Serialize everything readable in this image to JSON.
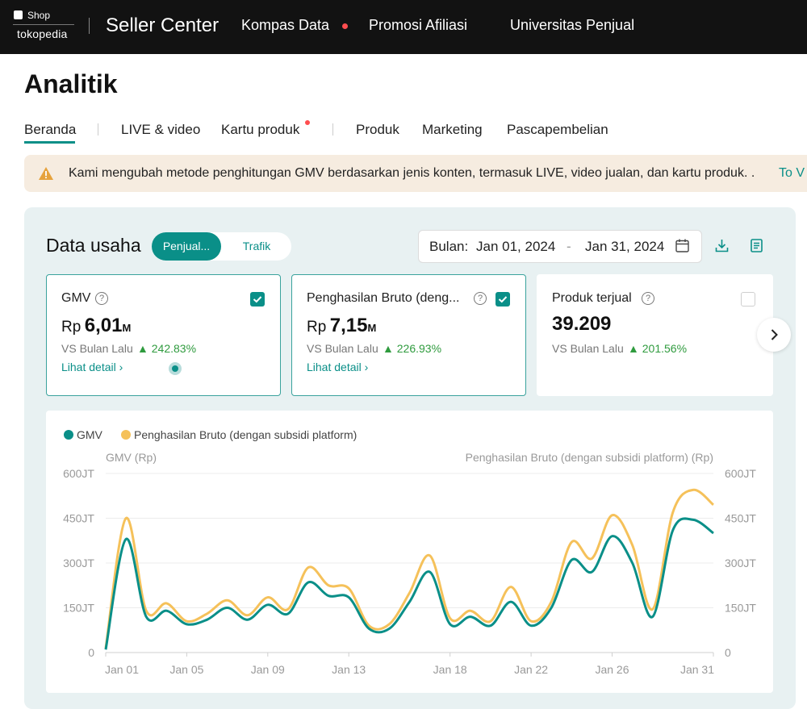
{
  "topbar": {
    "logo_shop": "Shop",
    "logo_brand": "tokopedia",
    "title": "Seller Center",
    "nav": [
      "Kompas Data",
      "Promosi Afiliasi",
      "Universitas Penjual"
    ]
  },
  "page": {
    "title": "Analitik",
    "tabs": [
      "Beranda",
      "LIVE & video",
      "Kartu produk",
      "Produk",
      "Marketing",
      "Pascapembelian"
    ],
    "active_tab": "Beranda"
  },
  "banner": {
    "text": "Kami mengubah metode penghitungan GMV berdasarkan jenis konten, termasuk LIVE, video jualan, dan kartu produk. .",
    "link": "To V"
  },
  "data_usaha": {
    "title": "Data usaha",
    "toggle_active": "Penjual...",
    "toggle_inactive": "Trafik",
    "date_label": "Bulan:",
    "date_from": "Jan 01, 2024",
    "date_sep": "-",
    "date_to": "Jan 31, 2024"
  },
  "metrics": [
    {
      "title": "GMV",
      "currency": "Rp",
      "value": "6,01",
      "unit": "M",
      "vs": "VS Bulan Lalu",
      "growth": "242.83%",
      "detail": "Lihat detail",
      "checked": true
    },
    {
      "title": "Penghasilan Bruto (deng...",
      "currency": "Rp",
      "value": "7,15",
      "unit": "M",
      "vs": "VS Bulan Lalu",
      "growth": "226.93%",
      "detail": "Lihat detail",
      "checked": true
    },
    {
      "title": "Produk terjual",
      "currency": "",
      "value": "39.209",
      "unit": "",
      "vs": "VS Bulan Lalu",
      "growth": "201.56%",
      "detail": "",
      "checked": false
    }
  ],
  "chart_data": {
    "type": "line",
    "legend": [
      "GMV",
      "Penghasilan Bruto (dengan subsidi platform)"
    ],
    "ylabel_left": "GMV (Rp)",
    "ylabel_right": "Penghasilan Bruto (dengan subsidi platform) (Rp)",
    "yticks": [
      "0",
      "150JT",
      "300JT",
      "450JT",
      "600JT"
    ],
    "ylim": [
      0,
      600
    ],
    "xticks": [
      "Jan 01",
      "Jan 05",
      "Jan 09",
      "Jan 13",
      "Jan 18",
      "Jan 22",
      "Jan 26",
      "Jan 31"
    ],
    "x": [
      1,
      2,
      3,
      4,
      5,
      6,
      7,
      8,
      9,
      10,
      11,
      12,
      13,
      14,
      15,
      16,
      17,
      18,
      19,
      20,
      21,
      22,
      23,
      24,
      25,
      26,
      27,
      28,
      29,
      30,
      31
    ],
    "series": [
      {
        "name": "GMV",
        "color": "#0a8f88",
        "values": [
          10,
          380,
          120,
          140,
          95,
          110,
          150,
          110,
          160,
          130,
          235,
          190,
          185,
          80,
          80,
          170,
          270,
          95,
          120,
          90,
          170,
          90,
          150,
          310,
          270,
          390,
          300,
          120,
          410,
          445,
          400
        ]
      },
      {
        "name": "Penghasilan Bruto (dengan subsidi platform)",
        "color": "#f5c15a",
        "values": [
          15,
          450,
          140,
          165,
          105,
          130,
          175,
          125,
          185,
          145,
          285,
          225,
          215,
          90,
          95,
          200,
          325,
          115,
          140,
          105,
          220,
          105,
          170,
          370,
          315,
          460,
          360,
          145,
          470,
          545,
          495
        ]
      }
    ]
  }
}
